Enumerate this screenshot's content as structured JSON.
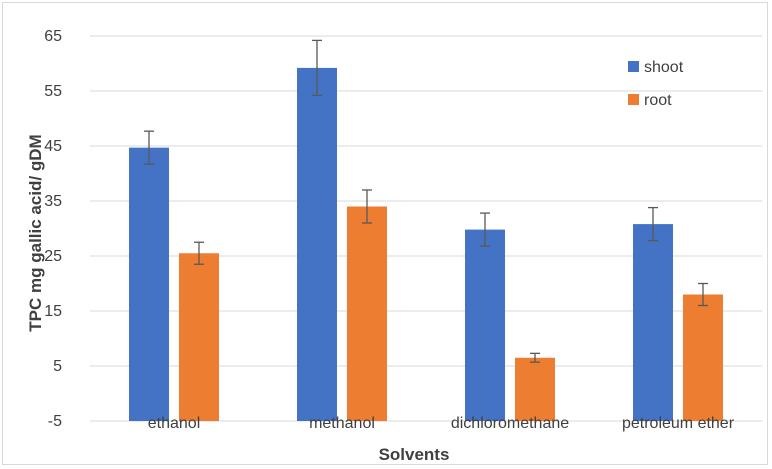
{
  "chart_data": {
    "type": "bar",
    "title": "",
    "xlabel": "Solvents",
    "ylabel": "TPC mg gallic acid/ gDM",
    "categories": [
      "ethanol",
      "methanol",
      "dichloromethane",
      "petroleum ether"
    ],
    "ylim": [
      -5,
      65
    ],
    "yticks": [
      -5,
      5,
      15,
      25,
      35,
      45,
      55,
      65
    ],
    "grid": "horizontal",
    "legend_position": "top-right",
    "series": [
      {
        "name": "shoot",
        "color": "#4472C4",
        "values": [
          44.7,
          59.2,
          29.8,
          30.8
        ],
        "errors": [
          3.0,
          5.0,
          3.0,
          3.0
        ]
      },
      {
        "name": "root",
        "color": "#ED7D31",
        "values": [
          25.5,
          34.0,
          6.5,
          18.0
        ],
        "errors": [
          2.0,
          3.0,
          0.8,
          2.0
        ]
      }
    ]
  }
}
